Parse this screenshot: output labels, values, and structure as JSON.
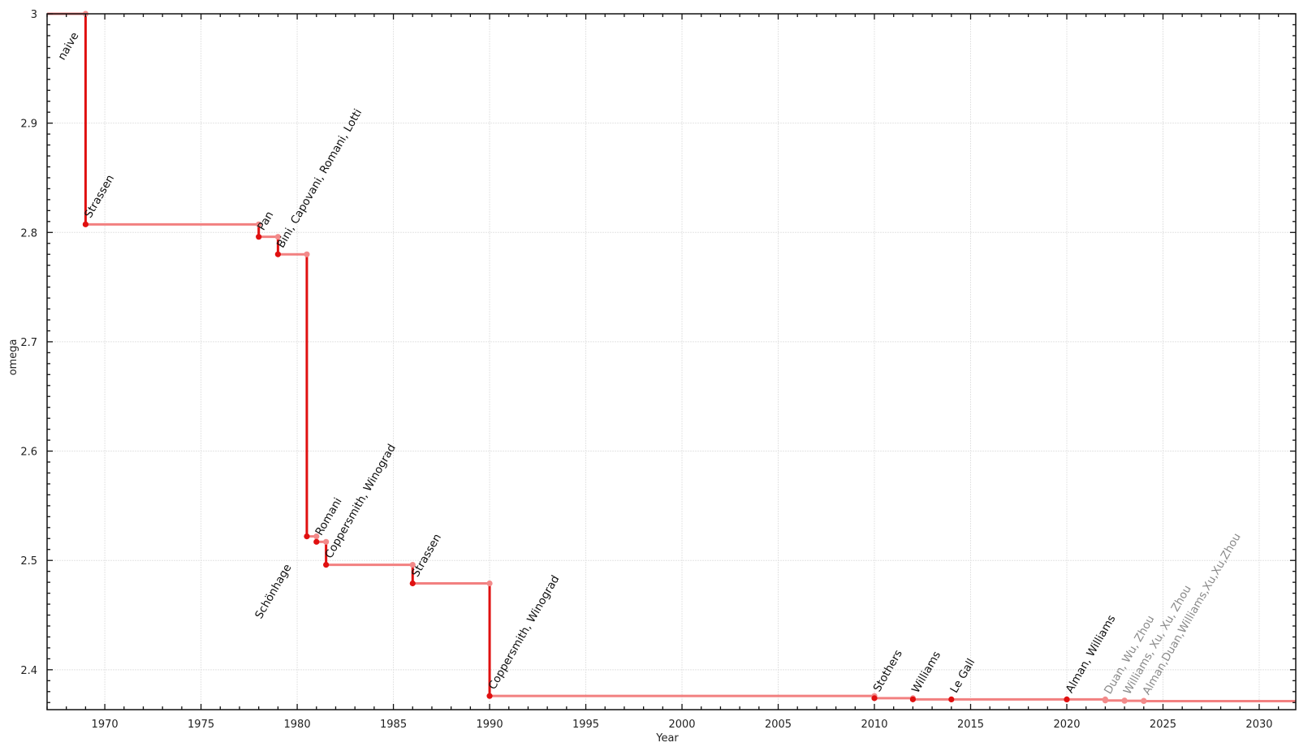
{
  "chart_data": {
    "type": "line",
    "step": "post",
    "title": "",
    "xlabel": "Year",
    "ylabel": "omega",
    "xlim": [
      1967,
      2031.9
    ],
    "ylim": [
      2.3635,
      3.0
    ],
    "x_ticks": [
      "1970",
      "1975",
      "1980",
      "1985",
      "1990",
      "1995",
      "2000",
      "2005",
      "2010",
      "2015",
      "2020",
      "2025",
      "2030"
    ],
    "y_ticks": [
      "2.4",
      "2.5",
      "2.6",
      "2.7",
      "2.8",
      "2.9",
      "3"
    ],
    "grid": true,
    "colors": {
      "horizontal": "#f28080",
      "vertical": "#e01010",
      "point_new": "#e01010",
      "point_prev": "#f28a8a",
      "label": "#111111",
      "label_recent": "#8a8a8a"
    },
    "points": [
      {
        "label": "naive",
        "year": null,
        "omega": 3.0,
        "recent": false
      },
      {
        "label": "Strassen",
        "year": 1969,
        "omega": 2.8074,
        "recent": false
      },
      {
        "label": "Pan",
        "year": 1978,
        "omega": 2.796,
        "recent": false
      },
      {
        "label": "Bini, Capovani, Romani, Lotti",
        "year": 1979,
        "omega": 2.78,
        "recent": false
      },
      {
        "label": "Schönhage",
        "year": 1980.5,
        "omega": 2.522,
        "recent": false
      },
      {
        "label": "Romani",
        "year": 1981,
        "omega": 2.517,
        "recent": false
      },
      {
        "label": "Coppersmith, Winograd",
        "year": 1981.5,
        "omega": 2.496,
        "recent": false
      },
      {
        "label": "Strassen",
        "year": 1986,
        "omega": 2.479,
        "recent": false
      },
      {
        "label": "Coppersmith, Winograd",
        "year": 1990,
        "omega": 2.376,
        "recent": false
      },
      {
        "label": "Stothers",
        "year": 2010,
        "omega": 2.374,
        "recent": false
      },
      {
        "label": "Williams",
        "year": 2012,
        "omega": 2.3729,
        "recent": false
      },
      {
        "label": "Le Gall",
        "year": 2014,
        "omega": 2.3728639,
        "recent": false
      },
      {
        "label": "Alman, Williams",
        "year": 2020,
        "omega": 2.3728596,
        "recent": false
      },
      {
        "label": "Duan, Wu, Zhou",
        "year": 2022,
        "omega": 2.371866,
        "recent": true
      },
      {
        "label": "Williams, Xu, Xu, Zhou",
        "year": 2023,
        "omega": 2.371552,
        "recent": true
      },
      {
        "label": "Alman,Duan,Williams,Xu,Xu,Zhou",
        "year": 2024,
        "omega": 2.371339,
        "recent": true
      }
    ]
  }
}
